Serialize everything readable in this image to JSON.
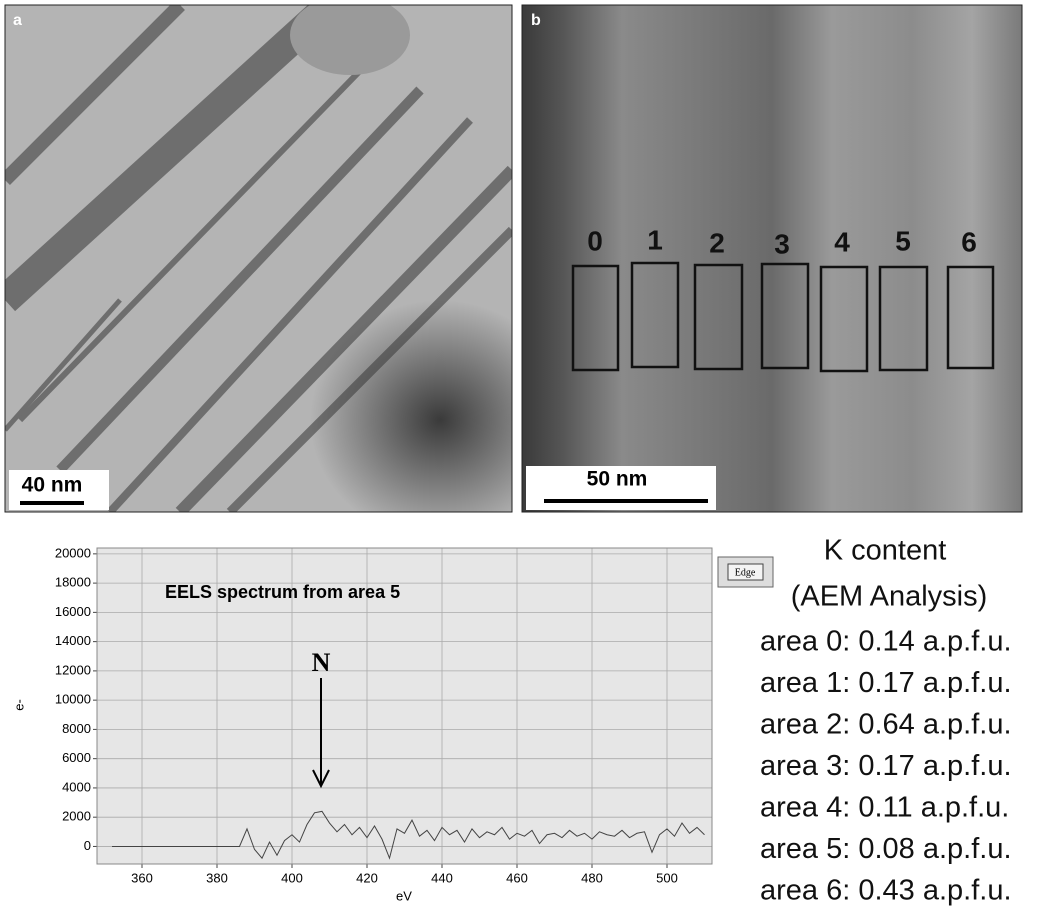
{
  "panels": [
    {
      "label": "a",
      "scale_bar": "40 nm"
    },
    {
      "label": "b",
      "scale_bar": "50 nm",
      "areas": [
        "0",
        "1",
        "2",
        "3",
        "4",
        "5",
        "6"
      ]
    }
  ],
  "chart_data": {
    "type": "line",
    "title": "EELS spectrum from area 5",
    "annotation": "N",
    "x_label": "eV",
    "y_label": "e-",
    "color": "#444444",
    "grid": true,
    "x": [
      352,
      354,
      356,
      358,
      360,
      362,
      364,
      366,
      368,
      370,
      372,
      374,
      376,
      378,
      380,
      382,
      384,
      386,
      388,
      390,
      392,
      394,
      396,
      398,
      400,
      402,
      404,
      406,
      408,
      410,
      412,
      414,
      416,
      418,
      420,
      422,
      424,
      426,
      428,
      430,
      432,
      434,
      436,
      438,
      440,
      442,
      444,
      446,
      448,
      450,
      452,
      454,
      456,
      458,
      460,
      462,
      464,
      466,
      468,
      470,
      472,
      474,
      476,
      478,
      480,
      482,
      484,
      486,
      488,
      490,
      492,
      494,
      496,
      498,
      500,
      502,
      504,
      506,
      508,
      510
    ],
    "values": [
      0,
      0,
      0,
      0,
      0,
      0,
      0,
      0,
      0,
      0,
      0,
      0,
      0,
      0,
      0,
      0,
      0,
      0,
      1200,
      -200,
      -800,
      300,
      -600,
      400,
      800,
      300,
      1500,
      2300,
      2400,
      1600,
      1000,
      1500,
      800,
      1300,
      600,
      1400,
      500,
      -800,
      1200,
      900,
      1800,
      700,
      1100,
      400,
      1300,
      800,
      1100,
      300,
      1200,
      600,
      1000,
      800,
      1300,
      500,
      900,
      700,
      1100,
      200,
      800,
      900,
      600,
      1100,
      700,
      900,
      500,
      1000,
      800,
      700,
      1100,
      600,
      900,
      1000,
      -400,
      800,
      1200,
      700,
      1600,
      900,
      1300,
      800
    ],
    "xlim": [
      348,
      512
    ],
    "xticks": [
      360,
      380,
      400,
      420,
      440,
      460,
      480,
      500
    ],
    "ylim": [
      -1200,
      20400
    ],
    "yticks": [
      0,
      2000,
      4000,
      6000,
      8000,
      10000,
      12000,
      14000,
      16000,
      18000,
      20000
    ]
  },
  "edge_button": "Edge",
  "k_content": {
    "title": "K content",
    "subtitle": "(AEM Analysis)",
    "lines": [
      "area 0: 0.14 a.p.f.u.",
      "area 1: 0.17 a.p.f.u.",
      "area 2: 0.64 a.p.f.u.",
      "area 3: 0.17 a.p.f.u.",
      "area 4: 0.11 a.p.f.u.",
      "area 5: 0.08 a.p.f.u.",
      "area 6: 0.43 a.p.f.u."
    ]
  }
}
